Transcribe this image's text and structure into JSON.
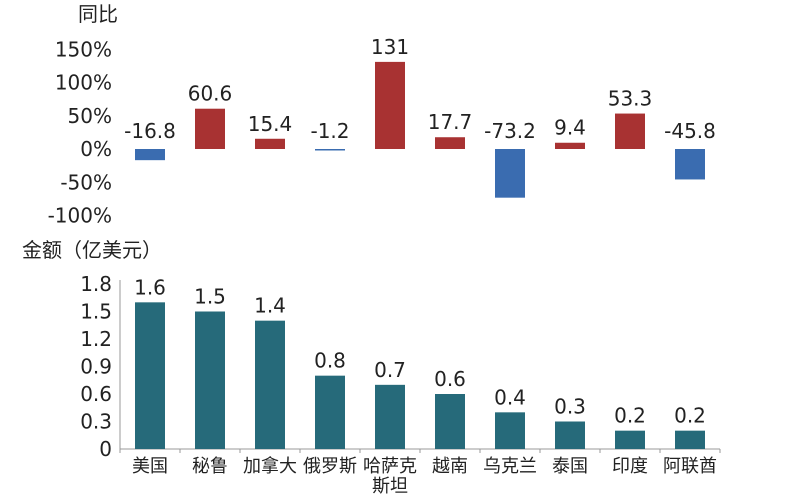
{
  "chart_data": [
    {
      "type": "bar",
      "ylabel": "同比",
      "categories": [
        "美国",
        "秘鲁",
        "加拿大",
        "俄罗斯",
        "哈萨克斯坦",
        "越南",
        "乌克兰",
        "泰国",
        "印度",
        "阿联酋"
      ],
      "values": [
        -16.8,
        60.6,
        15.4,
        -1.2,
        131,
        17.7,
        -73.2,
        9.4,
        53.3,
        -45.8
      ],
      "value_labels": [
        "-16.8",
        "60.6",
        "15.4",
        "-1.2",
        "131",
        "17.7",
        "-73.2",
        "9.4",
        "53.3",
        "-45.8"
      ],
      "yticks": [
        -100,
        -50,
        0,
        50,
        100,
        150
      ],
      "ytick_labels": [
        "-100%",
        "-50%",
        "0%",
        "50%",
        "100%",
        "150%"
      ],
      "ylim": [
        -100,
        150
      ],
      "colors": {
        "positive": "#a83232",
        "negative": "#3a6cb0"
      },
      "grid": false
    },
    {
      "type": "bar",
      "ylabel": "金额（亿美元）",
      "categories": [
        "美国",
        "秘鲁",
        "加拿大",
        "俄罗斯",
        "哈萨克斯坦",
        "越南",
        "乌克兰",
        "泰国",
        "印度",
        "阿联酋"
      ],
      "category_labels": [
        [
          "美国"
        ],
        [
          "秘鲁"
        ],
        [
          "加拿大"
        ],
        [
          "俄罗斯"
        ],
        [
          "哈萨克",
          "斯坦"
        ],
        [
          "越南"
        ],
        [
          "乌克兰"
        ],
        [
          "泰国"
        ],
        [
          "印度"
        ],
        [
          "阿联酋"
        ]
      ],
      "values": [
        1.6,
        1.5,
        1.4,
        0.8,
        0.7,
        0.6,
        0.4,
        0.3,
        0.2,
        0.2
      ],
      "value_labels": [
        "1.6",
        "1.5",
        "1.4",
        "0.8",
        "0.7",
        "0.6",
        "0.4",
        "0.3",
        "0.2",
        "0.2"
      ],
      "yticks": [
        0,
        0.3,
        0.6,
        0.9,
        1.2,
        1.5,
        1.8
      ],
      "ytick_labels": [
        "0",
        "0.3",
        "0.6",
        "0.9",
        "1.2",
        "1.5",
        "1.8"
      ],
      "ylim": [
        0,
        1.8
      ],
      "colors": {
        "bar": "#266a7a",
        "axis": "#999999"
      },
      "grid": false
    }
  ]
}
